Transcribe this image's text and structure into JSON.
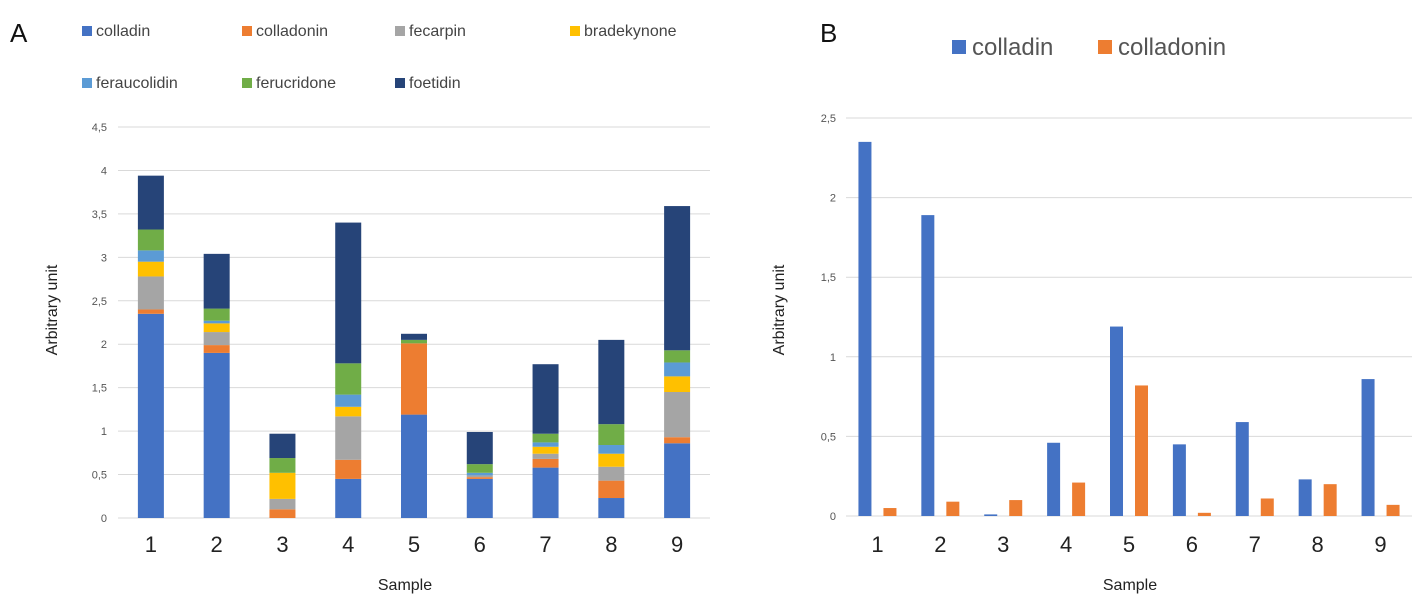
{
  "chart_data": [
    {
      "panel": "A",
      "type": "bar",
      "stacked": true,
      "xlabel": "Sample",
      "ylabel": "Arbitrary unit",
      "ylim": [
        0,
        4.5
      ],
      "yticks": [
        "0",
        "0,5",
        "1",
        "1,5",
        "2",
        "2,5",
        "3",
        "3,5",
        "4",
        "4,5"
      ],
      "categories": [
        "1",
        "2",
        "3",
        "4",
        "5",
        "6",
        "7",
        "8",
        "9"
      ],
      "grid": true,
      "legend": "top",
      "series": [
        {
          "name": "colladin",
          "color": "#4472C4",
          "values": [
            2.35,
            1.9,
            0.0,
            0.45,
            1.19,
            0.45,
            0.58,
            0.23,
            0.86
          ]
        },
        {
          "name": "colladonin",
          "color": "#ED7D31",
          "values": [
            0.05,
            0.09,
            0.1,
            0.22,
            0.82,
            0.02,
            0.1,
            0.2,
            0.07
          ]
        },
        {
          "name": "fecarpin",
          "color": "#A5A5A5",
          "values": [
            0.38,
            0.15,
            0.12,
            0.5,
            0.0,
            0.02,
            0.06,
            0.16,
            0.52
          ]
        },
        {
          "name": "bradekynone",
          "color": "#FFC000",
          "values": [
            0.17,
            0.1,
            0.3,
            0.11,
            0.0,
            0.0,
            0.08,
            0.15,
            0.18
          ]
        },
        {
          "name": "feraucolidin",
          "color": "#5B9BD5",
          "values": [
            0.13,
            0.03,
            0.0,
            0.14,
            0.0,
            0.03,
            0.05,
            0.1,
            0.16
          ]
        },
        {
          "name": "ferucridone",
          "color": "#70AD47",
          "values": [
            0.24,
            0.14,
            0.17,
            0.36,
            0.04,
            0.1,
            0.1,
            0.24,
            0.14
          ]
        },
        {
          "name": "foetidin",
          "color": "#264478",
          "values": [
            0.62,
            0.63,
            0.28,
            1.62,
            0.07,
            0.37,
            0.8,
            0.97,
            1.66
          ]
        }
      ]
    },
    {
      "panel": "B",
      "type": "bar",
      "stacked": false,
      "xlabel": "Sample",
      "ylabel": "Arbitrary unit",
      "ylim": [
        0,
        2.5
      ],
      "yticks": [
        "0",
        "0,5",
        "1",
        "1,5",
        "2",
        "2,5"
      ],
      "categories": [
        "1",
        "2",
        "3",
        "4",
        "5",
        "6",
        "7",
        "8",
        "9"
      ],
      "grid": true,
      "legend": "top",
      "series": [
        {
          "name": "colladin",
          "color": "#4472C4",
          "values": [
            2.35,
            1.89,
            0.01,
            0.46,
            1.19,
            0.45,
            0.59,
            0.23,
            0.86
          ]
        },
        {
          "name": "colladonin",
          "color": "#ED7D31",
          "values": [
            0.05,
            0.09,
            0.1,
            0.21,
            0.82,
            0.02,
            0.11,
            0.2,
            0.07
          ]
        }
      ]
    }
  ]
}
